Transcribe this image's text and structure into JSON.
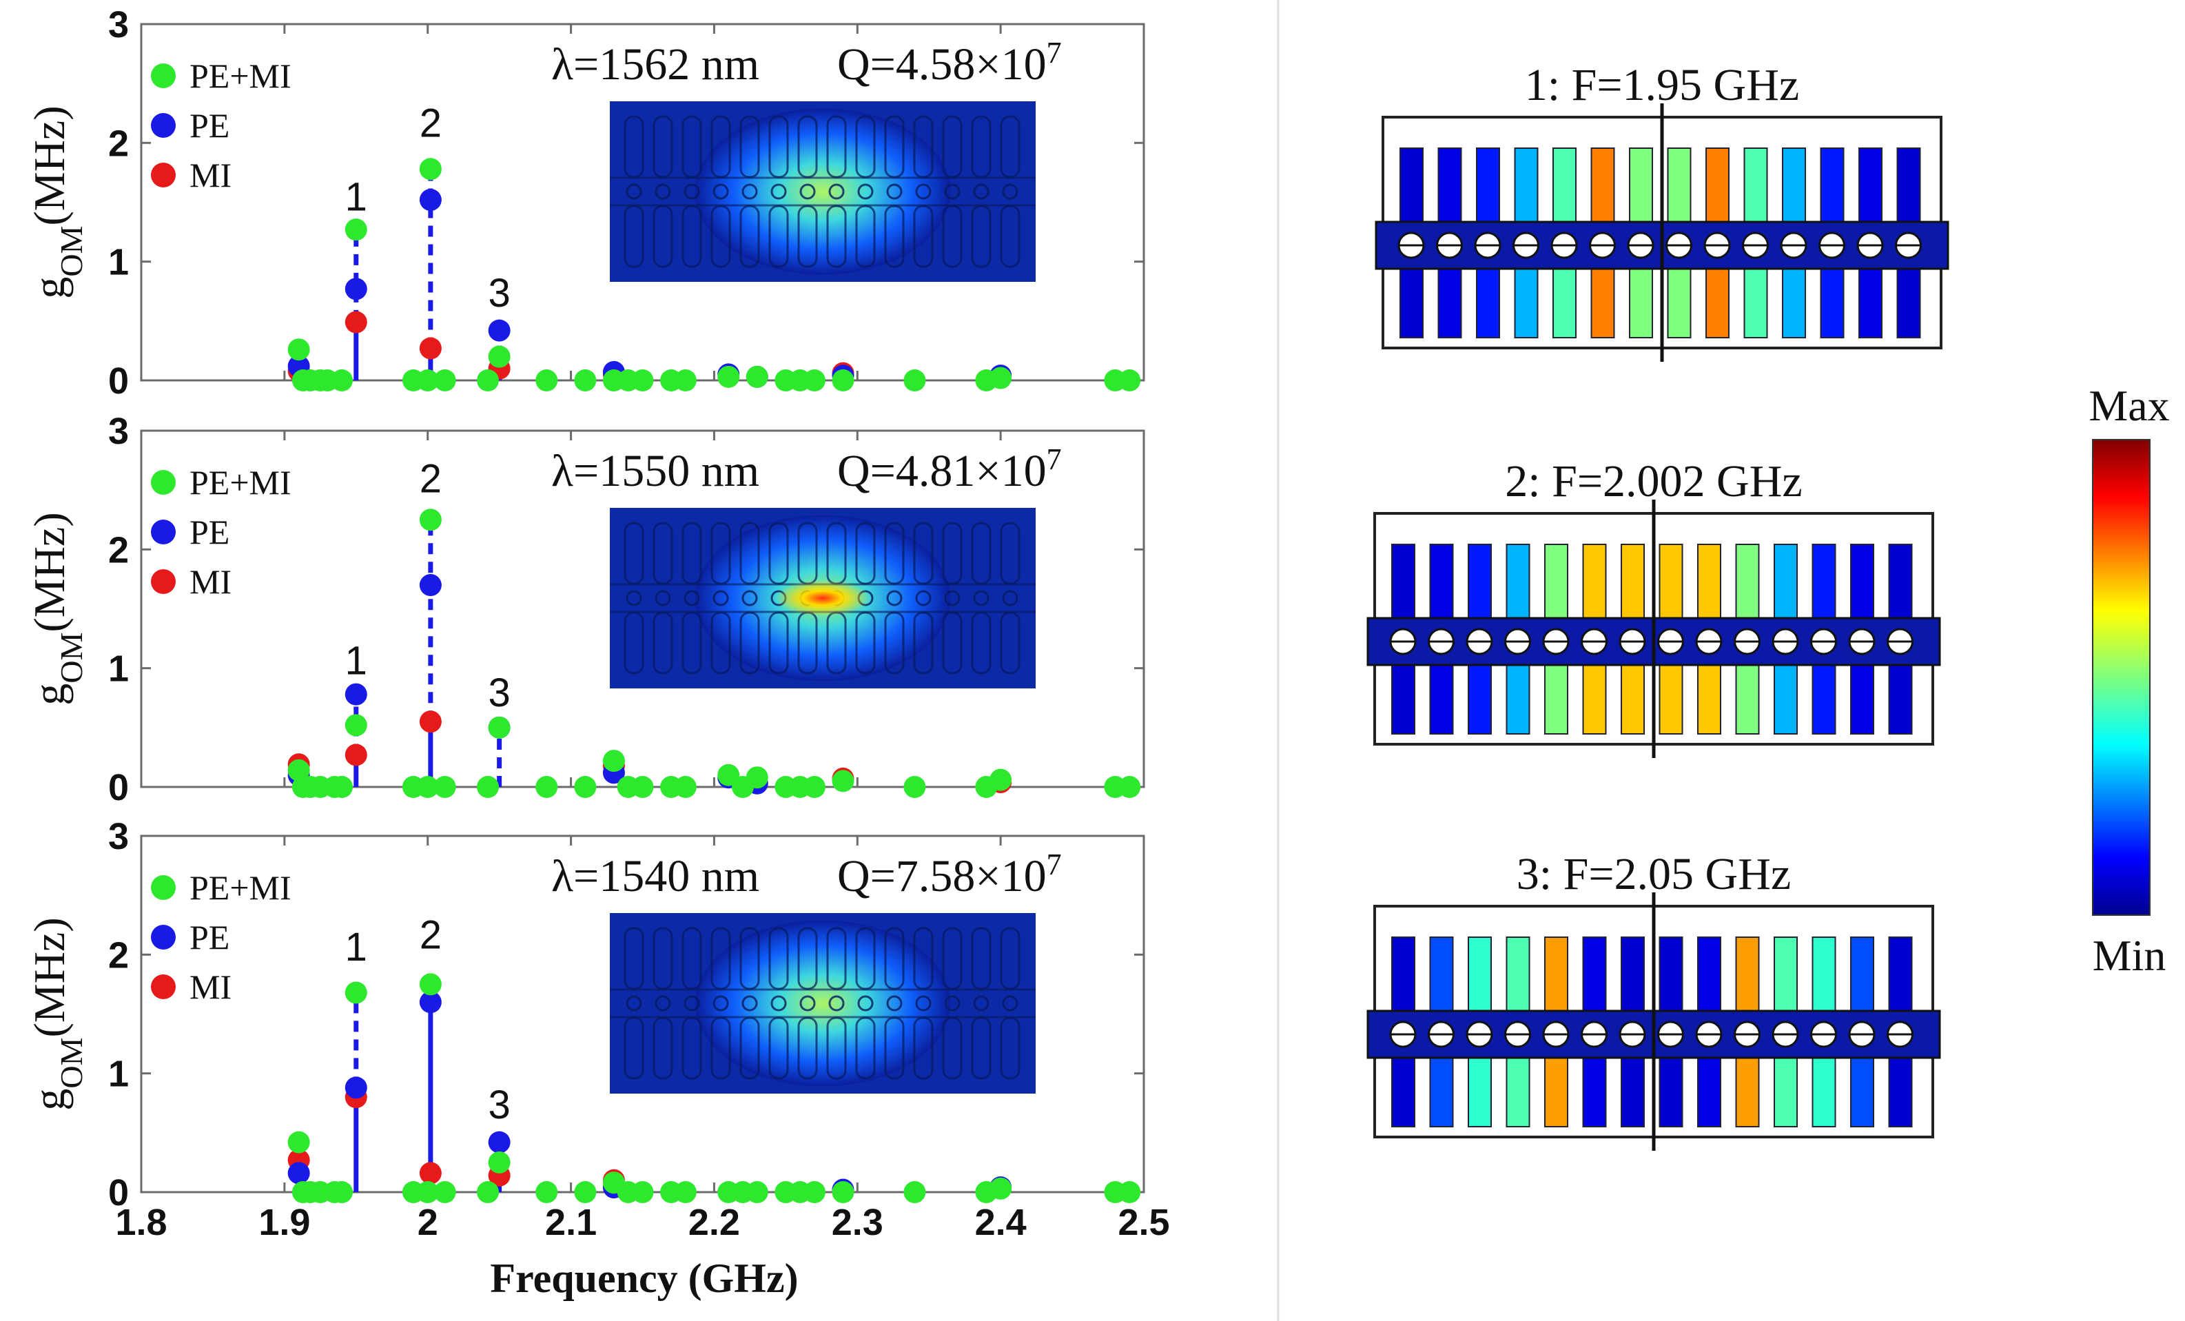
{
  "chart_data": {
    "type": "scatter",
    "subtype": "stem",
    "xlabel": "Frequency (GHz)",
    "x_ticks": [
      "1.8",
      "1.9",
      "2",
      "2.1",
      "2.2",
      "2.3",
      "2.4",
      "2.5"
    ],
    "xlim": [
      1.8,
      2.5
    ],
    "ylim": [
      0,
      3
    ],
    "y_ticks": [
      "0",
      "1",
      "2",
      "3"
    ],
    "ylabel_main": "g",
    "ylabel_sub": "OM",
    "ylabel_unit": "(MHz)",
    "legend_position": "top-left",
    "series_names": [
      "PE+MI",
      "PE",
      "MI"
    ],
    "series_colors": [
      "#2ee82e",
      "#1a1ae6",
      "#e61a1a"
    ],
    "panels": [
      {
        "wavelength_label": "λ=1562 nm",
        "q_label": "Q=4.58×10",
        "q_exponent": "7",
        "peak_labels": [
          {
            "text": "1",
            "x": 1.95,
            "y": 1.43
          },
          {
            "text": "2",
            "x": 2.002,
            "y": 2.05
          },
          {
            "text": "3",
            "x": 2.05,
            "y": 0.62
          }
        ],
        "stems": [
          {
            "x": 1.95,
            "top": 1.27,
            "solid_top": 0.5
          },
          {
            "x": 2.002,
            "top": 1.78,
            "solid_top": 0.27
          },
          {
            "x": 2.05,
            "top": 0.43,
            "solid_top": 0.2
          }
        ],
        "series": [
          {
            "name": "PE+MI",
            "points": [
              [
                1.91,
                0.26
              ],
              [
                1.913,
                0.0
              ],
              [
                1.918,
                0.0
              ],
              [
                1.925,
                0.0
              ],
              [
                1.93,
                0.0
              ],
              [
                1.94,
                0.0
              ],
              [
                1.95,
                1.27
              ],
              [
                1.99,
                0.0
              ],
              [
                2.0,
                0.0
              ],
              [
                2.002,
                1.78
              ],
              [
                2.012,
                0.0
              ],
              [
                2.042,
                0.0
              ],
              [
                2.05,
                0.2
              ],
              [
                2.083,
                0.0
              ],
              [
                2.11,
                0.0
              ],
              [
                2.13,
                0.0
              ],
              [
                2.14,
                0.0
              ],
              [
                2.15,
                0.0
              ],
              [
                2.17,
                0.0
              ],
              [
                2.18,
                0.0
              ],
              [
                2.21,
                0.03
              ],
              [
                2.23,
                0.03
              ],
              [
                2.25,
                0.0
              ],
              [
                2.26,
                0.0
              ],
              [
                2.27,
                0.0
              ],
              [
                2.29,
                0.0
              ],
              [
                2.34,
                0.0
              ],
              [
                2.39,
                0.0
              ],
              [
                2.4,
                0.02
              ],
              [
                2.48,
                0.0
              ],
              [
                2.49,
                0.0
              ]
            ]
          },
          {
            "name": "PE",
            "points": [
              [
                1.91,
                0.12
              ],
              [
                1.95,
                0.77
              ],
              [
                2.002,
                1.52
              ],
              [
                2.05,
                0.42
              ],
              [
                2.13,
                0.07
              ],
              [
                2.21,
                0.05
              ],
              [
                2.23,
                0.03
              ],
              [
                2.29,
                0.04
              ],
              [
                2.4,
                0.04
              ]
            ]
          },
          {
            "name": "MI",
            "points": [
              [
                1.91,
                0.08
              ],
              [
                1.95,
                0.49
              ],
              [
                2.002,
                0.27
              ],
              [
                2.05,
                0.1
              ],
              [
                2.13,
                0.05
              ],
              [
                2.29,
                0.06
              ]
            ]
          }
        ]
      },
      {
        "wavelength_label": "λ=1550 nm",
        "q_label": "Q=4.81×10",
        "q_exponent": "7",
        "peak_labels": [
          {
            "text": "1",
            "x": 1.95,
            "y": 0.95
          },
          {
            "text": "2",
            "x": 2.002,
            "y": 2.48
          },
          {
            "text": "3",
            "x": 2.05,
            "y": 0.68
          }
        ],
        "stems": [
          {
            "x": 1.95,
            "top": 0.78,
            "solid_top": 0.27
          },
          {
            "x": 2.002,
            "top": 2.25,
            "solid_top": 0.55
          },
          {
            "x": 2.05,
            "top": 0.5,
            "solid_top": 0.0
          }
        ],
        "series": [
          {
            "name": "PE+MI",
            "points": [
              [
                1.91,
                0.14
              ],
              [
                1.913,
                0.0
              ],
              [
                1.918,
                0.0
              ],
              [
                1.925,
                0.0
              ],
              [
                1.935,
                0.0
              ],
              [
                1.94,
                0.0
              ],
              [
                1.95,
                0.52
              ],
              [
                1.99,
                0.0
              ],
              [
                2.0,
                0.0
              ],
              [
                2.002,
                2.25
              ],
              [
                2.012,
                0.0
              ],
              [
                2.042,
                0.0
              ],
              [
                2.05,
                0.5
              ],
              [
                2.083,
                0.0
              ],
              [
                2.11,
                0.0
              ],
              [
                2.13,
                0.22
              ],
              [
                2.14,
                0.0
              ],
              [
                2.15,
                0.0
              ],
              [
                2.17,
                0.0
              ],
              [
                2.18,
                0.0
              ],
              [
                2.21,
                0.1
              ],
              [
                2.22,
                0.0
              ],
              [
                2.23,
                0.08
              ],
              [
                2.25,
                0.0
              ],
              [
                2.26,
                0.0
              ],
              [
                2.27,
                0.0
              ],
              [
                2.29,
                0.05
              ],
              [
                2.34,
                0.0
              ],
              [
                2.39,
                0.0
              ],
              [
                2.4,
                0.06
              ],
              [
                2.48,
                0.0
              ],
              [
                2.49,
                0.0
              ]
            ]
          },
          {
            "name": "PE",
            "points": [
              [
                1.91,
                0.1
              ],
              [
                1.95,
                0.78
              ],
              [
                2.002,
                1.7
              ],
              [
                2.05,
                0.5
              ],
              [
                2.13,
                0.12
              ],
              [
                2.21,
                0.08
              ],
              [
                2.23,
                0.03
              ]
            ]
          },
          {
            "name": "MI",
            "points": [
              [
                1.91,
                0.19
              ],
              [
                1.95,
                0.27
              ],
              [
                2.002,
                0.55
              ],
              [
                2.13,
                0.18
              ],
              [
                2.29,
                0.07
              ],
              [
                2.4,
                0.04
              ]
            ]
          }
        ]
      },
      {
        "wavelength_label": "λ=1540 nm",
        "q_label": "Q=7.58×10",
        "q_exponent": "7",
        "peak_labels": [
          {
            "text": "1",
            "x": 1.95,
            "y": 1.95
          },
          {
            "text": "2",
            "x": 2.002,
            "y": 2.05
          },
          {
            "text": "3",
            "x": 2.05,
            "y": 0.62
          }
        ],
        "stems": [
          {
            "x": 1.95,
            "top": 1.68,
            "solid_top": 0.88
          },
          {
            "x": 2.002,
            "top": 1.75,
            "solid_top": 1.6
          },
          {
            "x": 2.05,
            "top": 0.42,
            "solid_top": 0.0
          }
        ],
        "series": [
          {
            "name": "PE+MI",
            "points": [
              [
                1.91,
                0.42
              ],
              [
                1.913,
                0.0
              ],
              [
                1.918,
                0.0
              ],
              [
                1.925,
                0.0
              ],
              [
                1.935,
                0.0
              ],
              [
                1.94,
                0.0
              ],
              [
                1.95,
                1.68
              ],
              [
                1.99,
                0.0
              ],
              [
                2.0,
                0.0
              ],
              [
                2.002,
                1.75
              ],
              [
                2.012,
                0.0
              ],
              [
                2.042,
                0.0
              ],
              [
                2.05,
                0.25
              ],
              [
                2.083,
                0.0
              ],
              [
                2.11,
                0.0
              ],
              [
                2.13,
                0.08
              ],
              [
                2.14,
                0.0
              ],
              [
                2.15,
                0.0
              ],
              [
                2.17,
                0.0
              ],
              [
                2.18,
                0.0
              ],
              [
                2.21,
                0.0
              ],
              [
                2.22,
                0.0
              ],
              [
                2.23,
                0.0
              ],
              [
                2.25,
                0.0
              ],
              [
                2.26,
                0.0
              ],
              [
                2.27,
                0.0
              ],
              [
                2.29,
                0.0
              ],
              [
                2.34,
                0.0
              ],
              [
                2.39,
                0.0
              ],
              [
                2.4,
                0.03
              ],
              [
                2.48,
                0.0
              ],
              [
                2.49,
                0.0
              ]
            ]
          },
          {
            "name": "PE",
            "points": [
              [
                1.91,
                0.16
              ],
              [
                1.95,
                0.88
              ],
              [
                2.002,
                1.6
              ],
              [
                2.05,
                0.42
              ],
              [
                2.13,
                0.04
              ],
              [
                2.29,
                0.02
              ],
              [
                2.4,
                0.04
              ]
            ]
          },
          {
            "name": "MI",
            "points": [
              [
                1.91,
                0.27
              ],
              [
                1.95,
                0.8
              ],
              [
                2.002,
                0.16
              ],
              [
                2.05,
                0.14
              ],
              [
                2.13,
                0.1
              ]
            ]
          }
        ]
      }
    ]
  },
  "mode_shapes": [
    {
      "title": "1: F=1.95 GHz",
      "levels": [
        0.08,
        0.1,
        0.15,
        0.3,
        0.45,
        0.75,
        0.5,
        0.5,
        0.75,
        0.45,
        0.3,
        0.15,
        0.1,
        0.08
      ]
    },
    {
      "title": "2: F=2.002 GHz",
      "levels": [
        0.08,
        0.1,
        0.15,
        0.3,
        0.5,
        0.68,
        0.68,
        0.68,
        0.68,
        0.5,
        0.3,
        0.15,
        0.1,
        0.08
      ]
    },
    {
      "title": "3: F=2.05 GHz",
      "levels": [
        0.08,
        0.2,
        0.42,
        0.45,
        0.72,
        0.1,
        0.08,
        0.08,
        0.1,
        0.72,
        0.45,
        0.42,
        0.2,
        0.08
      ]
    }
  ],
  "colorbar": {
    "max_label": "Max",
    "min_label": "Min"
  }
}
